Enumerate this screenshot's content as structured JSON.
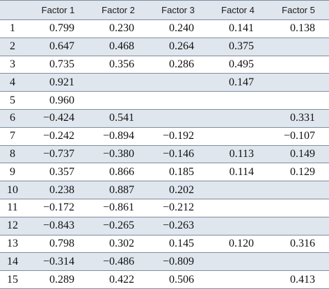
{
  "table": {
    "headers": [
      "",
      "Factor 1",
      "Factor 2",
      "Factor 3",
      "Factor 4",
      "Factor 5"
    ],
    "rows": [
      [
        "1",
        "0.799",
        "0.230",
        "0.240",
        "0.141",
        "0.138"
      ],
      [
        "2",
        "0.647",
        "0.468",
        "0.264",
        "0.375",
        ""
      ],
      [
        "3",
        "0.735",
        "0.356",
        "0.286",
        "0.495",
        ""
      ],
      [
        "4",
        "0.921",
        "",
        "",
        "0.147",
        ""
      ],
      [
        "5",
        "0.960",
        "",
        "",
        "",
        ""
      ],
      [
        "6",
        "−0.424",
        "0.541",
        "",
        "",
        "0.331"
      ],
      [
        "7",
        "−0.242",
        "−0.894",
        "−0.192",
        "",
        "−0.107"
      ],
      [
        "8",
        "−0.737",
        "−0.380",
        "−0.146",
        "0.113",
        "0.149"
      ],
      [
        "9",
        "0.357",
        "0.866",
        "0.185",
        "0.114",
        "0.129"
      ],
      [
        "10",
        "0.238",
        "0.887",
        "0.202",
        "",
        ""
      ],
      [
        "11",
        "−0.172",
        "−0.861",
        "−0.212",
        "",
        ""
      ],
      [
        "12",
        "−0.843",
        "−0.265",
        "−0.263",
        "",
        ""
      ],
      [
        "13",
        "0.798",
        "0.302",
        "0.145",
        "0.120",
        "0.316"
      ],
      [
        "14",
        "−0.314",
        "−0.486",
        "−0.809",
        "",
        ""
      ],
      [
        "15",
        "0.289",
        "0.422",
        "0.506",
        "",
        "0.413"
      ]
    ]
  },
  "colors": {
    "header_bg": "#dfe6ee",
    "alt_row_bg": "#dfe6ee",
    "rule": "#7f8e9c"
  }
}
